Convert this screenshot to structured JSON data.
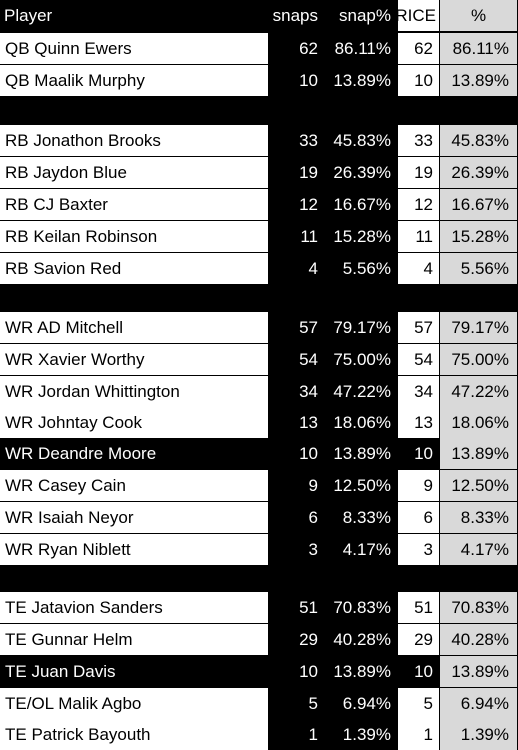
{
  "headers": {
    "player": "Player",
    "snaps": "snaps",
    "snap_pct": "snap%",
    "rice": "RICE",
    "rice_pct": "%"
  },
  "rows": [
    {
      "player": "QB Quinn Ewers",
      "snaps": "62",
      "pct": "86.11%",
      "rice": "62",
      "rice_pct": "86.11%"
    },
    {
      "player": "QB Maalik Murphy",
      "snaps": "10",
      "pct": "13.89%",
      "rice": "10",
      "rice_pct": "13.89%"
    },
    {
      "player": "RB Jonathon Brooks",
      "snaps": "33",
      "pct": "45.83%",
      "rice": "33",
      "rice_pct": "45.83%"
    },
    {
      "player": "RB Jaydon Blue",
      "snaps": "19",
      "pct": "26.39%",
      "rice": "19",
      "rice_pct": "26.39%"
    },
    {
      "player": "RB CJ Baxter",
      "snaps": "12",
      "pct": "16.67%",
      "rice": "12",
      "rice_pct": "16.67%"
    },
    {
      "player": "RB Keilan Robinson",
      "snaps": "11",
      "pct": "15.28%",
      "rice": "11",
      "rice_pct": "15.28%"
    },
    {
      "player": "RB Savion Red",
      "snaps": "4",
      "pct": "5.56%",
      "rice": "4",
      "rice_pct": "5.56%"
    },
    {
      "player": "WR AD Mitchell",
      "snaps": "57",
      "pct": "79.17%",
      "rice": "57",
      "rice_pct": "79.17%"
    },
    {
      "player": "WR Xavier Worthy",
      "snaps": "54",
      "pct": "75.00%",
      "rice": "54",
      "rice_pct": "75.00%"
    },
    {
      "player": "WR Jordan Whittington",
      "snaps": "34",
      "pct": "47.22%",
      "rice": "34",
      "rice_pct": "47.22%"
    },
    {
      "player": "WR Johntay Cook",
      "snaps": "13",
      "pct": "18.06%",
      "rice": "13",
      "rice_pct": "18.06%"
    },
    {
      "player": "WR Deandre Moore",
      "snaps": "10",
      "pct": "13.89%",
      "rice": "10",
      "rice_pct": "13.89%"
    },
    {
      "player": "WR Casey Cain",
      "snaps": "9",
      "pct": "12.50%",
      "rice": "9",
      "rice_pct": "12.50%"
    },
    {
      "player": "WR Isaiah Neyor",
      "snaps": "6",
      "pct": "8.33%",
      "rice": "6",
      "rice_pct": "8.33%"
    },
    {
      "player": "WR Ryan Niblett",
      "snaps": "3",
      "pct": "4.17%",
      "rice": "3",
      "rice_pct": "4.17%"
    },
    {
      "player": "TE Jatavion Sanders",
      "snaps": "51",
      "pct": "70.83%",
      "rice": "51",
      "rice_pct": "70.83%"
    },
    {
      "player": "TE Gunnar Helm",
      "snaps": "29",
      "pct": "40.28%",
      "rice": "29",
      "rice_pct": "40.28%"
    },
    {
      "player": "TE Juan Davis",
      "snaps": "10",
      "pct": "13.89%",
      "rice": "10",
      "rice_pct": "13.89%"
    },
    {
      "player": "TE/OL Malik Agbo",
      "snaps": "5",
      "pct": "6.94%",
      "rice": "5",
      "rice_pct": "6.94%"
    },
    {
      "player": "TE Patrick Bayouth",
      "snaps": "1",
      "pct": "1.39%",
      "rice": "1",
      "rice_pct": "1.39%"
    }
  ],
  "colors": {
    "black": "#000000",
    "white": "#ffffff",
    "shade": "#d9d9d9"
  }
}
